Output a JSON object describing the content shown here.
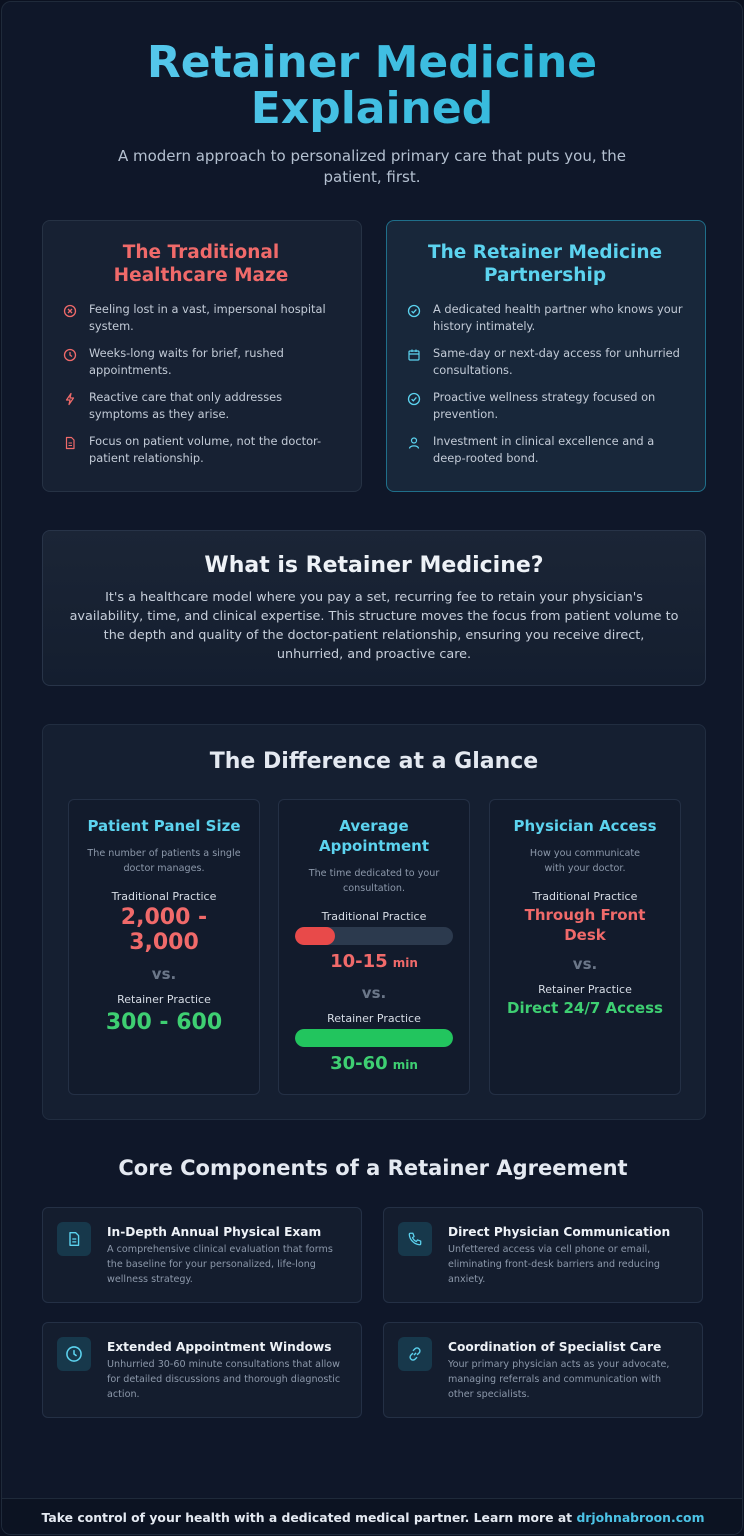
{
  "header": {
    "title": "Retainer Medicine Explained",
    "subtitle": "A modern approach to personalized primary care that puts you, the patient, first."
  },
  "traditional": {
    "title": "The Traditional Healthcare Maze",
    "accent": "#f06a6a",
    "items": [
      {
        "icon": "x-circle-icon",
        "text": "Feeling lost in a vast, impersonal hospital system."
      },
      {
        "icon": "clock-icon",
        "text": "Weeks-long waits for brief, rushed appointments."
      },
      {
        "icon": "lightning-icon",
        "text": "Reactive care that only addresses symptoms as they arise."
      },
      {
        "icon": "document-icon",
        "text": "Focus on patient volume, not the doctor-patient relationship."
      }
    ]
  },
  "retainer": {
    "title": "The Retainer Medicine Partnership",
    "accent": "#5cd3ef",
    "items": [
      {
        "icon": "check-circle-icon",
        "text": "A dedicated health partner who knows your history intimately."
      },
      {
        "icon": "calendar-icon",
        "text": "Same-day or next-day access for unhurried consultations."
      },
      {
        "icon": "check-circle-icon",
        "text": "Proactive wellness strategy focused on prevention."
      },
      {
        "icon": "user-icon",
        "text": "Investment in clinical excellence and a deep-rooted bond."
      }
    ]
  },
  "what": {
    "title": "What is Retainer Medicine?",
    "body": "It's a healthcare model where you pay a set, recurring fee to retain your physician's availability, time, and clinical expertise. This structure moves the focus from patient volume to the depth and quality of the doctor-patient relationship, ensuring you receive direct, unhurried, and proactive care."
  },
  "glance": {
    "title": "The Difference at a Glance",
    "panel": {
      "title": "Patient Panel Size",
      "desc": "The number of patients a single doctor manages.",
      "trad_label": "Traditional Practice",
      "trad_value": "2,000 - 3,000",
      "vs": "vs.",
      "ret_label": "Retainer Practice",
      "ret_value": "300 - 600"
    },
    "appointment": {
      "title": "Average Appointment",
      "desc": "The time dedicated to your consultation.",
      "trad_label": "Traditional Practice",
      "trad_fill_fraction": 0.25,
      "trad_value": "10-15",
      "unit": "min",
      "vs": "vs.",
      "ret_label": "Retainer Practice",
      "ret_fill_fraction": 1.0,
      "ret_value": "30-60"
    },
    "access": {
      "title": "Physician Access",
      "desc": "How you communicate with your doctor.",
      "trad_label": "Traditional Practice",
      "trad_value": "Through Front Desk",
      "vs": "vs.",
      "ret_label": "Retainer Practice",
      "ret_value": "Direct 24/7 Access"
    }
  },
  "core": {
    "title": "Core Components of a Retainer Agreement",
    "items": [
      {
        "icon": "document-icon",
        "title": "In-Depth Annual Physical Exam",
        "text": "A comprehensive clinical evaluation that forms the baseline for your personalized, life-long wellness strategy."
      },
      {
        "icon": "phone-icon",
        "title": "Direct Physician Communication",
        "text": "Unfettered access via cell phone or email, eliminating front-desk barriers and reducing anxiety."
      },
      {
        "icon": "clock-icon",
        "title": "Extended Appointment Windows",
        "text": "Unhurried 30-60 minute consultations that allow for detailed discussions and thorough diagnostic action."
      },
      {
        "icon": "link-icon",
        "title": "Coordination of Specialist Care",
        "text": "Your primary physician acts as your advocate, managing referrals and communication with other specialists."
      }
    ]
  },
  "footer": {
    "text": "Take control of your health with a dedicated medical partner. Learn more at",
    "link": "drjohnabroon.com"
  },
  "colors": {
    "red": "#f06a6a",
    "green": "#3ecf72",
    "cyan": "#5cd3ef",
    "background": "#0f1729"
  }
}
